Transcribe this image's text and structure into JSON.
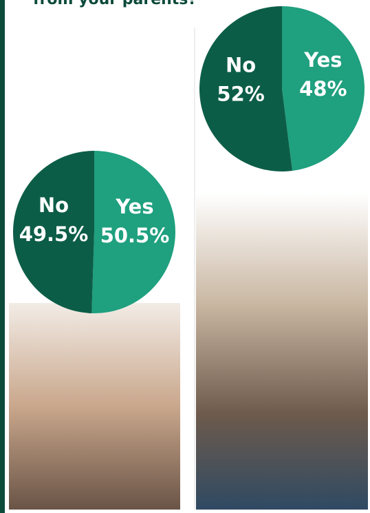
{
  "title": "from your parents?",
  "chart_data": [
    {
      "type": "pie",
      "categories": [
        "Yes",
        "No"
      ],
      "values": [
        48,
        52
      ],
      "value_labels": [
        "48%",
        "52%"
      ],
      "colors": [
        "#1fa07f",
        "#0c5d47"
      ]
    },
    {
      "type": "pie",
      "categories": [
        "Yes",
        "No"
      ],
      "values": [
        50.5,
        49.5
      ],
      "value_labels": [
        "50.5%",
        "49.5%"
      ],
      "colors": [
        "#1fa07f",
        "#0c5d47"
      ]
    }
  ]
}
